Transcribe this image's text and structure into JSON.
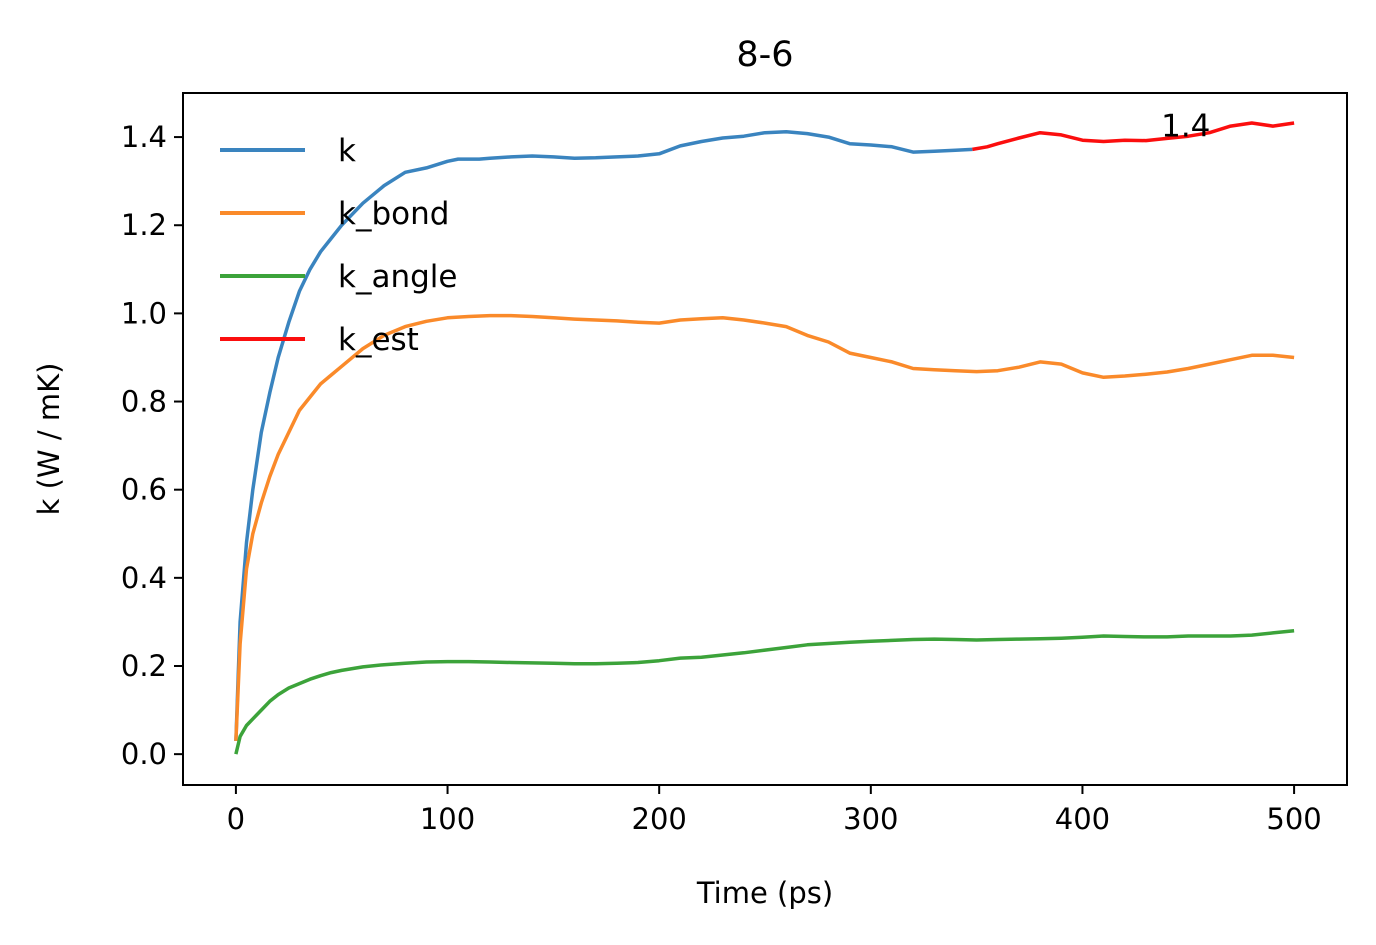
{
  "chart_data": {
    "type": "line",
    "title": "8-6",
    "xlabel": "Time (ps)",
    "ylabel": "k (W / mK)",
    "xlim": [
      -25,
      525
    ],
    "ylim": [
      -0.07,
      1.5
    ],
    "xticks": [
      0,
      100,
      200,
      300,
      400,
      500
    ],
    "yticks": [
      0.0,
      0.2,
      0.4,
      0.6,
      0.8,
      1.0,
      1.2,
      1.4
    ],
    "xtick_labels": [
      "0",
      "100",
      "200",
      "300",
      "400",
      "500"
    ],
    "ytick_labels": [
      "0.0",
      "0.2",
      "0.4",
      "0.6",
      "0.8",
      "1.0",
      "1.2",
      "1.4"
    ],
    "grid": false,
    "legend_position": "upper-left",
    "annotation": {
      "text": "1.4",
      "x": 440,
      "y": 1.41
    },
    "series": [
      {
        "name": "k",
        "color": "#3a84bf",
        "x": [
          0,
          2,
          5,
          8,
          12,
          16,
          20,
          25,
          30,
          35,
          40,
          45,
          50,
          60,
          70,
          80,
          90,
          100,
          105,
          110,
          115,
          120,
          130,
          140,
          150,
          160,
          170,
          180,
          190,
          200,
          210,
          220,
          230,
          240,
          250,
          260,
          270,
          280,
          290,
          300,
          310,
          320,
          330,
          340,
          348
        ],
        "y": [
          0.03,
          0.3,
          0.48,
          0.6,
          0.73,
          0.82,
          0.9,
          0.98,
          1.05,
          1.1,
          1.14,
          1.17,
          1.2,
          1.25,
          1.29,
          1.32,
          1.33,
          1.345,
          1.35,
          1.35,
          1.35,
          1.352,
          1.355,
          1.357,
          1.355,
          1.352,
          1.353,
          1.355,
          1.357,
          1.362,
          1.38,
          1.39,
          1.398,
          1.402,
          1.41,
          1.412,
          1.408,
          1.4,
          1.385,
          1.382,
          1.378,
          1.366,
          1.368,
          1.37,
          1.372
        ]
      },
      {
        "name": "k_bond",
        "color": "#fa8a2a",
        "x": [
          0,
          2,
          5,
          8,
          12,
          16,
          20,
          25,
          30,
          35,
          40,
          45,
          50,
          60,
          70,
          80,
          90,
          100,
          110,
          120,
          130,
          140,
          150,
          160,
          170,
          180,
          190,
          200,
          210,
          220,
          230,
          240,
          250,
          260,
          270,
          280,
          290,
          300,
          310,
          320,
          330,
          340,
          350,
          360,
          370,
          380,
          390,
          400,
          410,
          420,
          430,
          440,
          450,
          460,
          470,
          480,
          490,
          500
        ],
        "y": [
          0.03,
          0.25,
          0.42,
          0.5,
          0.57,
          0.63,
          0.68,
          0.73,
          0.78,
          0.81,
          0.84,
          0.86,
          0.88,
          0.92,
          0.95,
          0.97,
          0.982,
          0.99,
          0.993,
          0.995,
          0.995,
          0.993,
          0.99,
          0.987,
          0.985,
          0.983,
          0.98,
          0.978,
          0.985,
          0.988,
          0.99,
          0.985,
          0.978,
          0.97,
          0.95,
          0.935,
          0.91,
          0.9,
          0.89,
          0.875,
          0.872,
          0.87,
          0.868,
          0.87,
          0.878,
          0.89,
          0.885,
          0.865,
          0.855,
          0.858,
          0.862,
          0.867,
          0.875,
          0.885,
          0.895,
          0.905,
          0.905,
          0.9
        ]
      },
      {
        "name": "k_angle",
        "color": "#3ca33a",
        "x": [
          0,
          2,
          5,
          8,
          12,
          16,
          20,
          25,
          30,
          35,
          40,
          45,
          50,
          60,
          70,
          80,
          90,
          100,
          110,
          120,
          130,
          140,
          150,
          160,
          170,
          180,
          190,
          200,
          210,
          220,
          230,
          240,
          250,
          260,
          270,
          280,
          290,
          300,
          310,
          320,
          330,
          340,
          350,
          360,
          370,
          380,
          390,
          400,
          410,
          420,
          430,
          440,
          450,
          460,
          470,
          480,
          490,
          500
        ],
        "y": [
          0.0,
          0.04,
          0.065,
          0.08,
          0.1,
          0.12,
          0.135,
          0.15,
          0.16,
          0.17,
          0.178,
          0.185,
          0.19,
          0.198,
          0.203,
          0.206,
          0.209,
          0.21,
          0.21,
          0.209,
          0.208,
          0.207,
          0.206,
          0.205,
          0.205,
          0.206,
          0.208,
          0.212,
          0.218,
          0.22,
          0.225,
          0.23,
          0.236,
          0.242,
          0.248,
          0.251,
          0.254,
          0.256,
          0.258,
          0.26,
          0.261,
          0.26,
          0.259,
          0.26,
          0.261,
          0.262,
          0.263,
          0.265,
          0.268,
          0.267,
          0.266,
          0.266,
          0.268,
          0.268,
          0.268,
          0.27,
          0.275,
          0.28
        ]
      },
      {
        "name": "k_est",
        "color": "#fb0e0e",
        "x": [
          348,
          355,
          360,
          370,
          380,
          390,
          400,
          410,
          420,
          430,
          440,
          450,
          460,
          470,
          480,
          490,
          500
        ],
        "y": [
          1.372,
          1.378,
          1.385,
          1.398,
          1.41,
          1.405,
          1.393,
          1.39,
          1.393,
          1.392,
          1.397,
          1.402,
          1.41,
          1.425,
          1.432,
          1.425,
          1.432
        ]
      }
    ]
  }
}
